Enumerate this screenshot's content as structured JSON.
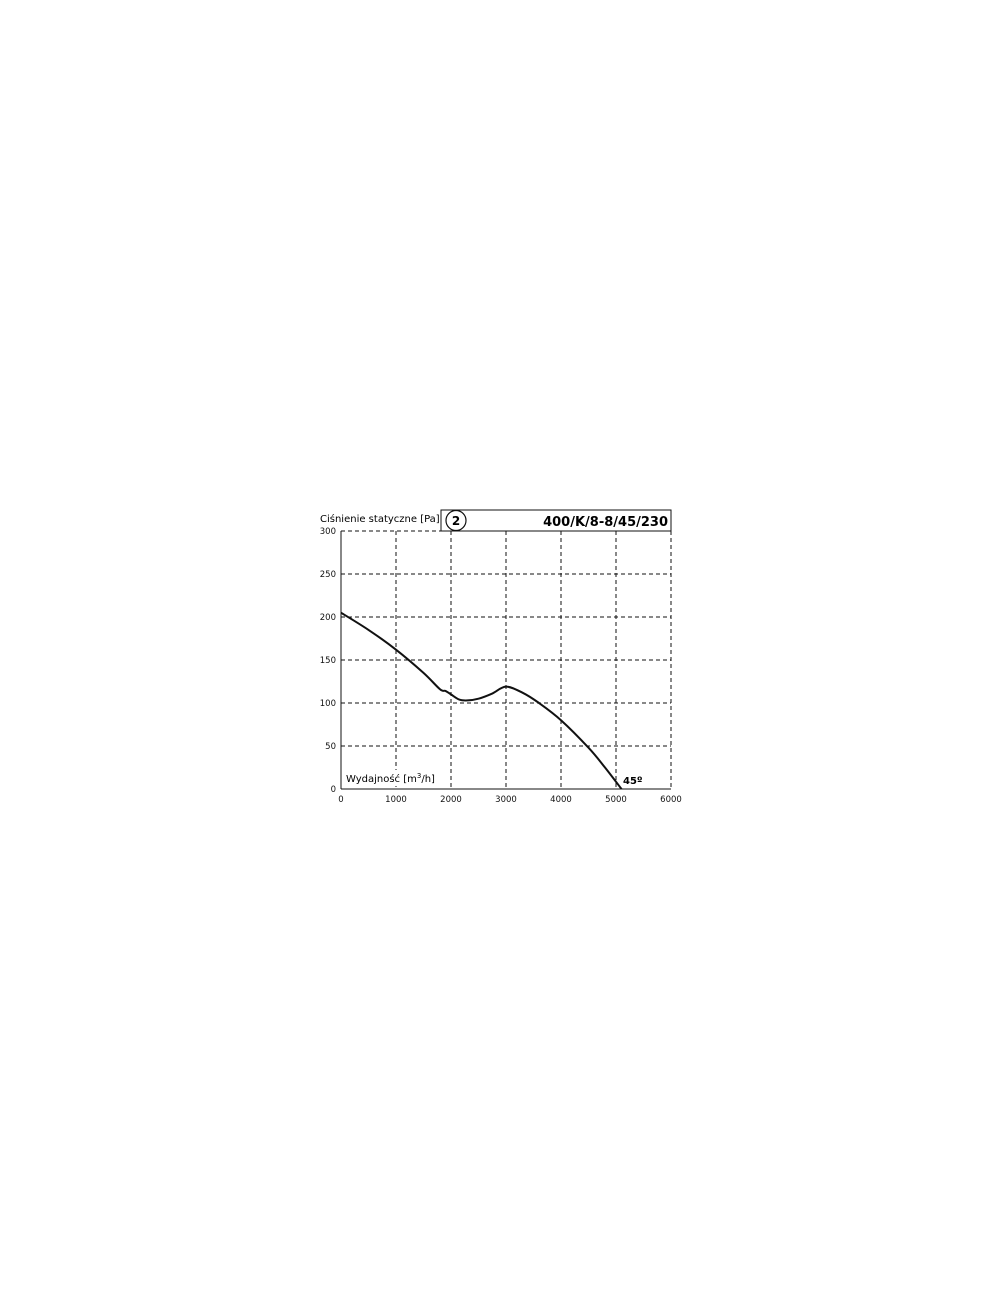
{
  "chart_data": {
    "type": "line",
    "ylabel": "Ciśnienie statyczne [Pa]",
    "xlabel": "Wydajność [m³/h]",
    "xlabel_parts": {
      "main": "Wydajność [m",
      "sup": "3",
      "end": "/h]"
    },
    "badge": "2",
    "title": "400/K/8-8/45/230",
    "annotation": "45º",
    "xlim": [
      0,
      6000
    ],
    "ylim": [
      0,
      300
    ],
    "xticks": [
      "0",
      "1000",
      "2000",
      "3000",
      "4000",
      "5000",
      "6000"
    ],
    "yticks": [
      "0",
      "50",
      "100",
      "150",
      "200",
      "250",
      "300"
    ],
    "grid": true,
    "line_color": "#111111",
    "series": [
      {
        "x": [
          0,
          500,
          1000,
          1500,
          1800,
          1900,
          2000,
          2150,
          2300,
          2500,
          2750,
          3000,
          3300,
          3600,
          4000,
          4500,
          4800,
          5100
        ],
        "y": [
          205,
          185,
          162,
          135,
          116,
          114,
          110,
          104,
          103,
          105,
          111,
          119,
          112,
          100,
          80,
          48,
          25,
          0
        ]
      }
    ]
  }
}
